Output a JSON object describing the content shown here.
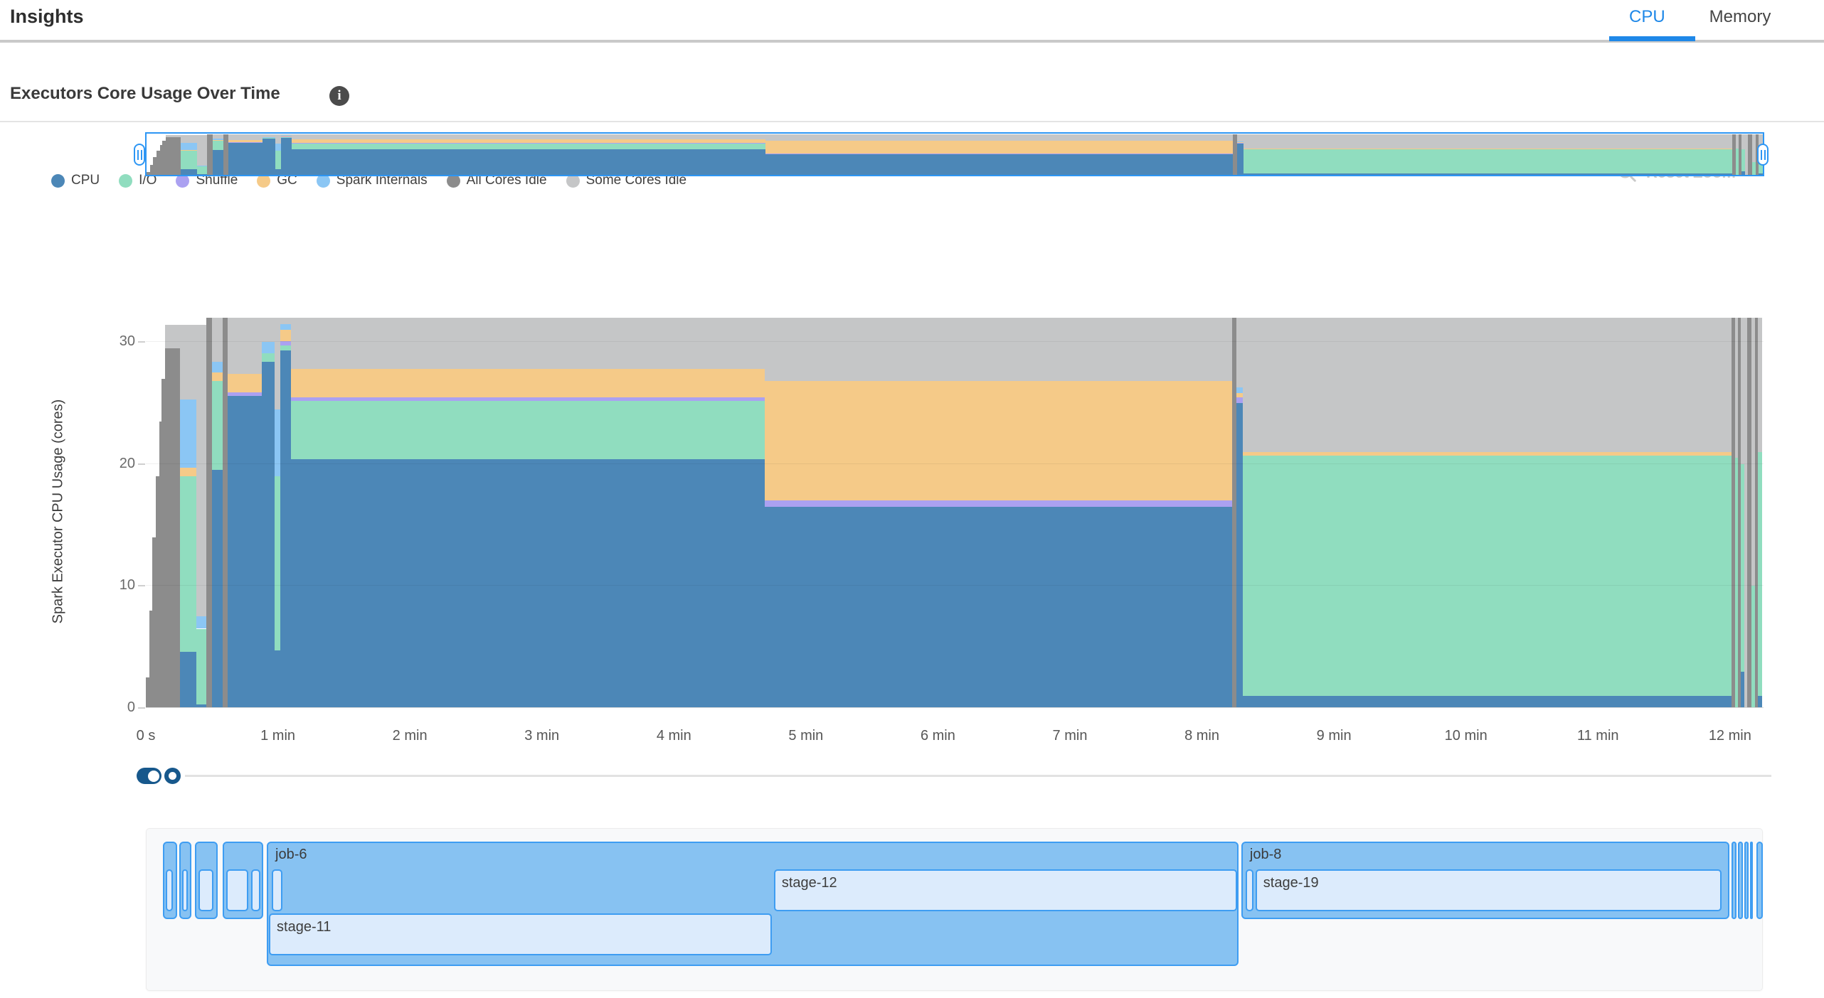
{
  "header": {
    "title": "Insights",
    "tabs": [
      {
        "label": "CPU",
        "active": true
      },
      {
        "label": "Memory",
        "active": false
      }
    ]
  },
  "section": {
    "title": "Executors Core Usage Over Time",
    "info_icon": "i"
  },
  "toolbar": {
    "reset_zoom_label": "Reset Zoom"
  },
  "legend": [
    {
      "key": "cpu",
      "label": "CPU"
    },
    {
      "key": "io",
      "label": "I/O"
    },
    {
      "key": "shuffle",
      "label": "Shuffle"
    },
    {
      "key": "gc",
      "label": "GC"
    },
    {
      "key": "internals",
      "label": "Spark Internals"
    },
    {
      "key": "dark",
      "label": "All Cores Idle"
    },
    {
      "key": "light",
      "label": "Some Cores Idle"
    }
  ],
  "chart_data": {
    "type": "area",
    "stacked": true,
    "title": "Executors Core Usage Over Time",
    "ylabel": "Spark Executor CPU Usage (cores)",
    "ylim": [
      0,
      32
    ],
    "yticks": [
      0,
      10,
      20,
      30
    ],
    "xticks": [
      {
        "t": 0,
        "label": "0 s"
      },
      {
        "t": 1,
        "label": "1 min"
      },
      {
        "t": 2,
        "label": "2 min"
      },
      {
        "t": 3,
        "label": "3 min"
      },
      {
        "t": 4,
        "label": "4 min"
      },
      {
        "t": 5,
        "label": "5 min"
      },
      {
        "t": 6,
        "label": "6 min"
      },
      {
        "t": 7,
        "label": "7 min"
      },
      {
        "t": 8,
        "label": "8 min"
      },
      {
        "t": 9,
        "label": "9 min"
      },
      {
        "t": 10,
        "label": "10 min"
      },
      {
        "t": 11,
        "label": "11 min"
      },
      {
        "t": 12,
        "label": "12 min"
      }
    ],
    "series_order": [
      "dark",
      "cpu",
      "io",
      "shuffle",
      "gc",
      "internals",
      "light"
    ],
    "colors": {
      "cpu": "#4c87b7",
      "io": "#90ddbf",
      "shuffle": "#aba1f1",
      "gc": "#f5ca88",
      "internals": "#8bc6f4",
      "dark": "#8c8c8c",
      "light": "#c5c6c7"
    },
    "segments": [
      {
        "t0": 0.0,
        "t1": 0.025,
        "dark": 2.5
      },
      {
        "t0": 0.025,
        "t1": 0.05,
        "dark": 8
      },
      {
        "t0": 0.05,
        "t1": 0.075,
        "dark": 14
      },
      {
        "t0": 0.075,
        "t1": 0.1,
        "dark": 19
      },
      {
        "t0": 0.1,
        "t1": 0.12,
        "dark": 23.5
      },
      {
        "t0": 0.12,
        "t1": 0.145,
        "dark": 27
      },
      {
        "t0": 0.145,
        "t1": 0.26,
        "dark": 29.5,
        "light": 1.9
      },
      {
        "t0": 0.26,
        "t1": 0.38,
        "cpu": 4.6,
        "io": 14.4,
        "gc": 0.7,
        "internals": 5.6,
        "light": 6.1
      },
      {
        "t0": 0.38,
        "t1": 0.46,
        "cpu": 0.3,
        "io": 6.2,
        "internals": 1.0,
        "light": 23.9
      },
      {
        "t0": 0.46,
        "t1": 0.5,
        "dark": 32
      },
      {
        "t0": 0.5,
        "t1": 0.58,
        "cpu": 19.5,
        "io": 7.3,
        "gc": 0.7,
        "internals": 0.9,
        "light": 3.6
      },
      {
        "t0": 0.58,
        "t1": 0.62,
        "dark": 32
      },
      {
        "t0": 0.62,
        "t1": 0.88,
        "cpu": 25.6,
        "shuffle": 0.3,
        "gc": 1.5,
        "light": 4.6
      },
      {
        "t0": 0.88,
        "t1": 0.975,
        "cpu": 28.4,
        "io": 0.7,
        "internals": 0.9,
        "light": 2.0
      },
      {
        "t0": 0.975,
        "t1": 1.02,
        "cpu": 4.7,
        "io": 14.3,
        "internals": 5.5,
        "light": 7.5
      },
      {
        "t0": 1.02,
        "t1": 1.1,
        "cpu": 29.3,
        "io": 0.4,
        "shuffle": 0.4,
        "gc": 0.9,
        "internals": 0.5,
        "light": 0.5
      },
      {
        "t0": 1.1,
        "t1": 4.69,
        "cpu": 20.4,
        "io": 4.8,
        "shuffle": 0.3,
        "gc": 2.3,
        "light": 4.2
      },
      {
        "t0": 4.69,
        "t1": 8.23,
        "cpu": 16.5,
        "shuffle": 0.5,
        "gc": 9.8,
        "light": 5.2
      },
      {
        "t0": 8.23,
        "t1": 8.26,
        "dark": 32
      },
      {
        "t0": 8.26,
        "t1": 8.31,
        "cpu": 25.0,
        "shuffle": 0.5,
        "gc": 0.3,
        "internals": 0.5,
        "light": 5.7
      },
      {
        "t0": 8.31,
        "t1": 12.01,
        "cpu": 1.0,
        "io": 19.7,
        "gc": 0.3,
        "light": 11.0
      },
      {
        "t0": 12.01,
        "t1": 12.04,
        "dark": 32
      },
      {
        "t0": 12.04,
        "t1": 12.062,
        "io": 20.5,
        "light": 11.5
      },
      {
        "t0": 12.062,
        "t1": 12.082,
        "dark": 32
      },
      {
        "t0": 12.082,
        "t1": 12.11,
        "cpu": 3.0,
        "io": 17.0,
        "light": 12.0
      },
      {
        "t0": 12.11,
        "t1": 12.132,
        "light": 32
      },
      {
        "t0": 12.132,
        "t1": 12.16,
        "dark": 32
      },
      {
        "t0": 12.16,
        "t1": 12.19,
        "io": 10.0,
        "light": 22.0
      },
      {
        "t0": 12.19,
        "t1": 12.212,
        "dark": 32
      },
      {
        "t0": 12.212,
        "t1": 12.244,
        "cpu": 1.0,
        "io": 20.0,
        "light": 11.0
      }
    ]
  },
  "gantt": {
    "jobs": [
      {
        "label": "",
        "t0": 0.124,
        "t1": 0.232,
        "rows": 1,
        "stages": [
          {
            "label": "",
            "t0": 0.148,
            "t1": 0.202,
            "row": 1
          }
        ]
      },
      {
        "label": "",
        "t0": 0.248,
        "t1": 0.339,
        "rows": 1,
        "stages": [
          {
            "label": "",
            "t0": 0.267,
            "t1": 0.315,
            "row": 1
          }
        ]
      },
      {
        "label": "",
        "t0": 0.366,
        "t1": 0.539,
        "rows": 1,
        "stages": [
          {
            "label": "",
            "t0": 0.393,
            "t1": 0.506,
            "row": 1
          }
        ]
      },
      {
        "label": "",
        "t0": 0.577,
        "t1": 0.884,
        "rows": 1,
        "stages": [
          {
            "label": "",
            "t0": 0.603,
            "t1": 0.77,
            "row": 1
          },
          {
            "label": "",
            "t0": 0.792,
            "t1": 0.862,
            "row": 1
          }
        ]
      },
      {
        "label": "job-6",
        "t0": 0.911,
        "t1": 8.271,
        "rows": 2,
        "stages": [
          {
            "label": "",
            "t0": 0.948,
            "t1": 1.029,
            "row": 1
          },
          {
            "label": "stage-12",
            "t0": 4.752,
            "t1": 8.26,
            "row": 1
          },
          {
            "label": "stage-11",
            "t0": 0.927,
            "t1": 4.736,
            "row": 2
          }
        ]
      },
      {
        "label": "job-8",
        "t0": 8.293,
        "t1": 11.99,
        "rows": 1,
        "stages": [
          {
            "label": "",
            "t0": 8.325,
            "t1": 8.384,
            "row": 1
          },
          {
            "label": "stage-19",
            "t0": 8.4,
            "t1": 11.929,
            "row": 1
          }
        ]
      },
      {
        "label": "",
        "t0": 12.006,
        "t1": 12.044,
        "rows": 1,
        "stages": []
      },
      {
        "label": "",
        "t0": 12.055,
        "t1": 12.092,
        "rows": 1,
        "stages": []
      },
      {
        "label": "",
        "t0": 12.103,
        "t1": 12.136,
        "rows": 1,
        "stages": []
      },
      {
        "label": "",
        "t0": 12.147,
        "t1": 12.168,
        "rows": 1,
        "stages": []
      },
      {
        "label": "",
        "t0": 12.195,
        "t1": 12.244,
        "rows": 1,
        "stages": []
      }
    ]
  }
}
